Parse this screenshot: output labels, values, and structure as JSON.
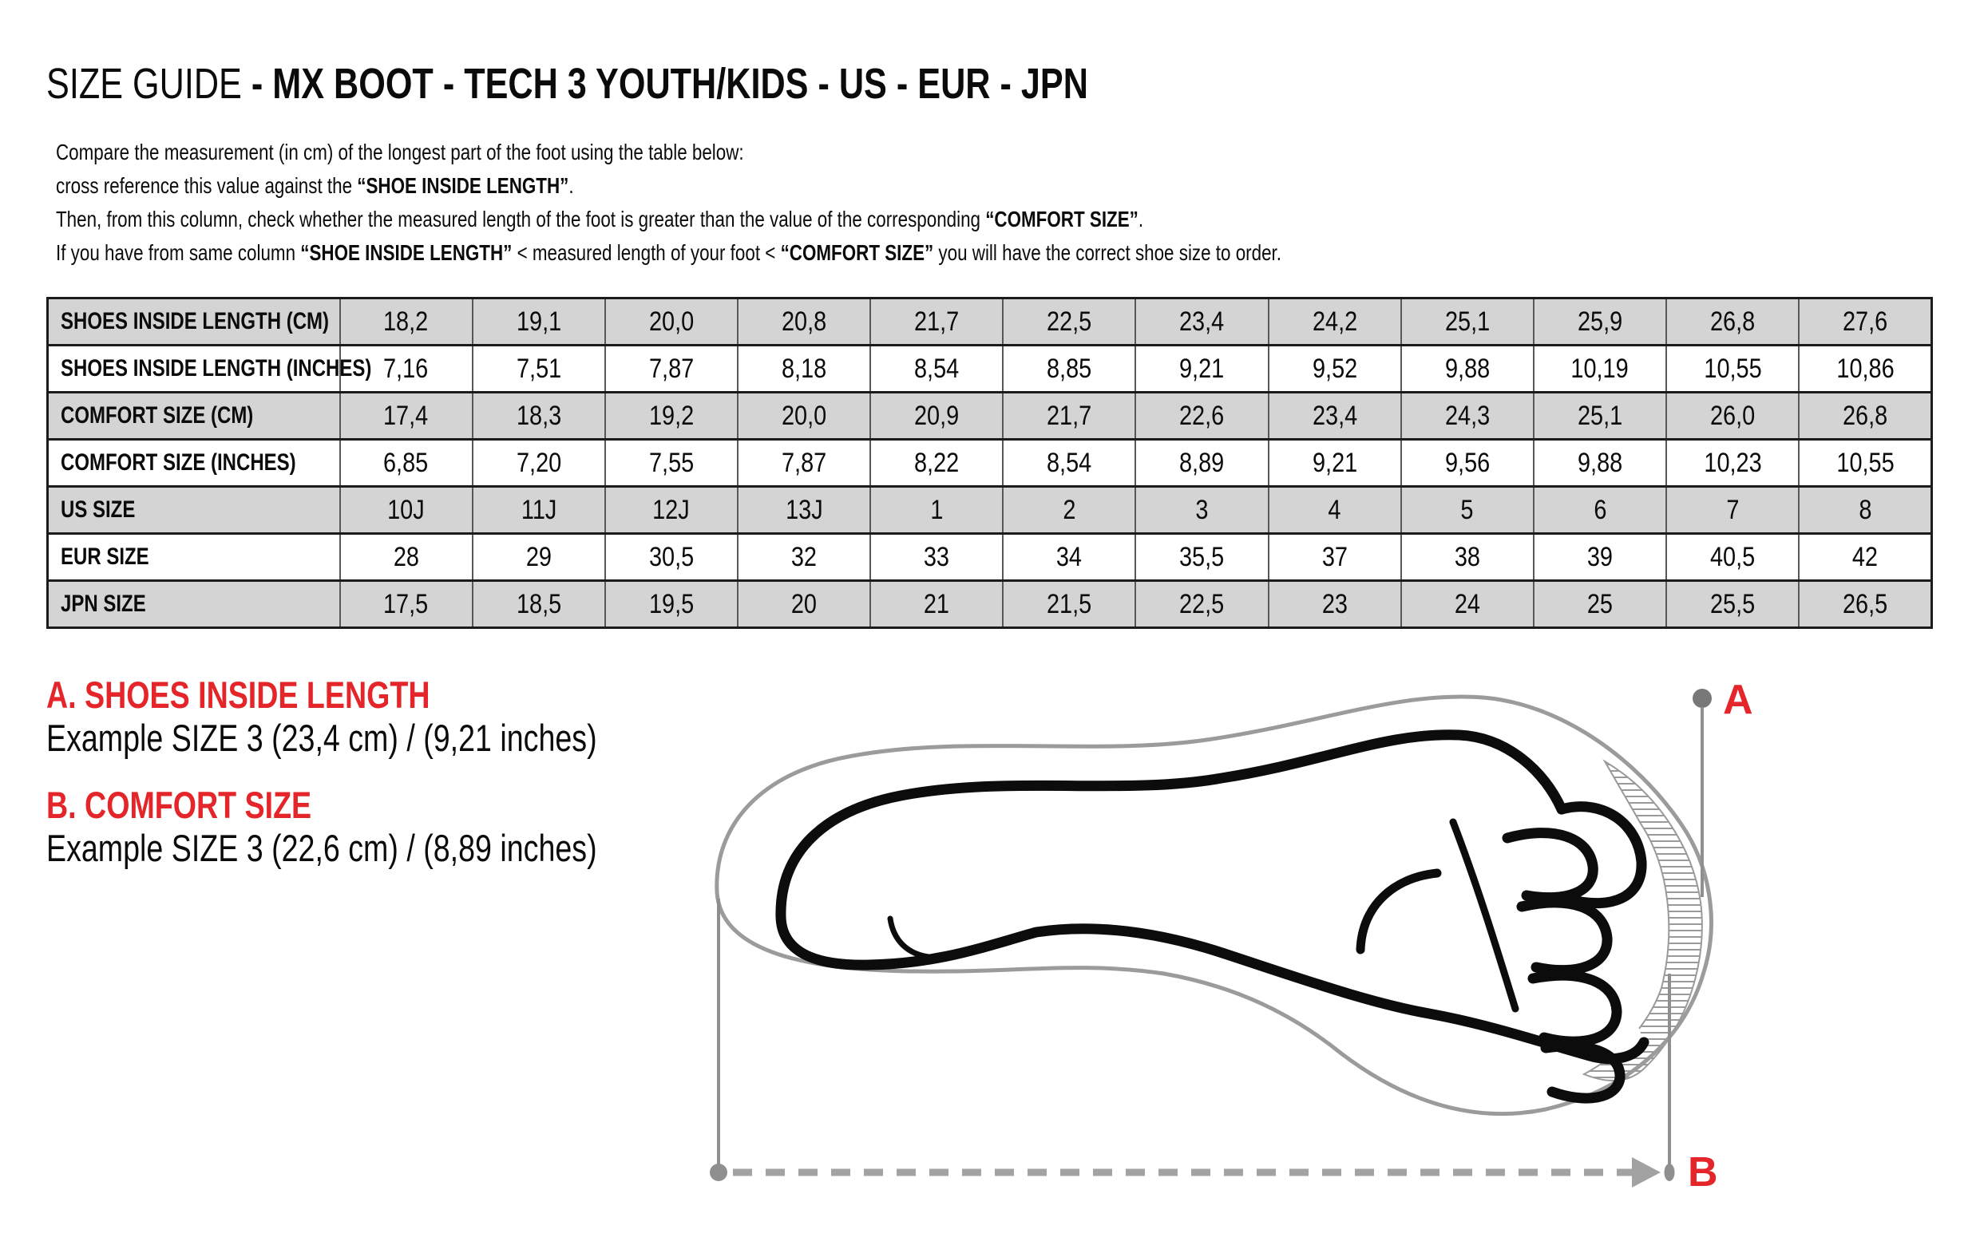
{
  "title": {
    "normal": "SIZE GUIDE ",
    "bold": "- MX BOOT - TECH 3 YOUTH/KIDS - US - EUR - JPN"
  },
  "intro": {
    "l1s1": "Compare the measurement (in cm) of the longest part of the foot using the table below:",
    "l2s1": "cross reference this value against the ",
    "l2s2": "“SHOE INSIDE LENGTH”",
    "l2s3": ".",
    "l3s1": "Then, from this column, check whether the measured length of the foot is greater than the value of the corresponding ",
    "l3s2": "“COMFORT SIZE”",
    "l3s3": ".",
    "l4s1": "If you have from same column ",
    "l4s2": "“SHOE INSIDE LENGTH”",
    "l4s3": " <  measured length of your foot  < ",
    "l4s4": "“COMFORT SIZE”",
    "l4s5": " you will have the correct shoe size to order."
  },
  "table": {
    "rows": [
      {
        "label": "SHOES INSIDE LENGTH (CM)",
        "values": [
          "18,2",
          "19,1",
          "20,0",
          "20,8",
          "21,7",
          "22,5",
          "23,4",
          "24,2",
          "25,1",
          "25,9",
          "26,8",
          "27,6"
        ]
      },
      {
        "label": "SHOES INSIDE LENGTH (INCHES)",
        "values": [
          "7,16",
          "7,51",
          "7,87",
          "8,18",
          "8,54",
          "8,85",
          "9,21",
          "9,52",
          "9,88",
          "10,19",
          "10,55",
          "10,86"
        ]
      },
      {
        "label": "COMFORT SIZE (CM)",
        "values": [
          "17,4",
          "18,3",
          "19,2",
          "20,0",
          "20,9",
          "21,7",
          "22,6",
          "23,4",
          "24,3",
          "25,1",
          "26,0",
          "26,8"
        ]
      },
      {
        "label": "COMFORT SIZE (INCHES)",
        "values": [
          "6,85",
          "7,20",
          "7,55",
          "7,87",
          "8,22",
          "8,54",
          "8,89",
          "9,21",
          "9,56",
          "9,88",
          "10,23",
          "10,55"
        ]
      },
      {
        "label": "US SIZE",
        "values": [
          "10J",
          "11J",
          "12J",
          "13J",
          "1",
          "2",
          "3",
          "4",
          "5",
          "6",
          "7",
          "8"
        ]
      },
      {
        "label": "EUR SIZE",
        "values": [
          "28",
          "29",
          "30,5",
          "32",
          "33",
          "34",
          "35,5",
          "37",
          "38",
          "39",
          "40,5",
          "42"
        ]
      },
      {
        "label": "JPN SIZE",
        "values": [
          "17,5",
          "18,5",
          "19,5",
          "20",
          "21",
          "21,5",
          "22,5",
          "23",
          "24",
          "25",
          "25,5",
          "26,5"
        ]
      }
    ]
  },
  "sections": {
    "a": {
      "heading": "A. SHOES INSIDE LENGTH",
      "example": "Example SIZE 3 (23,4 cm) / (9,21 inches)"
    },
    "b": {
      "heading": "B. COMFORT SIZE",
      "example": "Example SIZE 3 (22,6 cm) / (8,89 inches)"
    }
  },
  "diagram": {
    "label_a": "A",
    "label_b": "B"
  },
  "colors": {
    "accent_red": "#e42529",
    "table_row_gray": "#d4d4d4",
    "outline_gray": "#9b9b9b",
    "guide_gray": "#8f8f8f",
    "dash_gray": "#a2a2a2",
    "border_dark": "#1b1b1b"
  }
}
